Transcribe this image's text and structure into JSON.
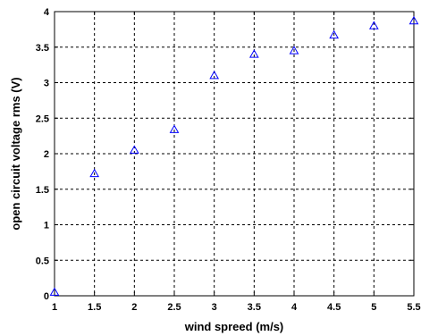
{
  "chart_data": {
    "type": "scatter",
    "xlabel": "wind spreed (m/s)",
    "ylabel": "open circuit voltage rms (V)",
    "xlim": [
      1,
      5.5
    ],
    "ylim": [
      0,
      4
    ],
    "xticks": [
      1,
      1.5,
      2,
      2.5,
      3,
      3.5,
      4,
      4.5,
      5,
      5.5
    ],
    "yticks": [
      0,
      0.5,
      1,
      1.5,
      2,
      2.5,
      3,
      3.5,
      4
    ],
    "grid": true,
    "marker": "triangle",
    "marker_color": "#0000ff",
    "series": [
      {
        "x": [
          1,
          1.5,
          2,
          2.5,
          3,
          3.5,
          4,
          4.5,
          5,
          5.5
        ],
        "y": [
          0.05,
          1.72,
          2.05,
          2.34,
          3.1,
          3.4,
          3.45,
          3.67,
          3.8,
          3.87
        ]
      }
    ]
  }
}
